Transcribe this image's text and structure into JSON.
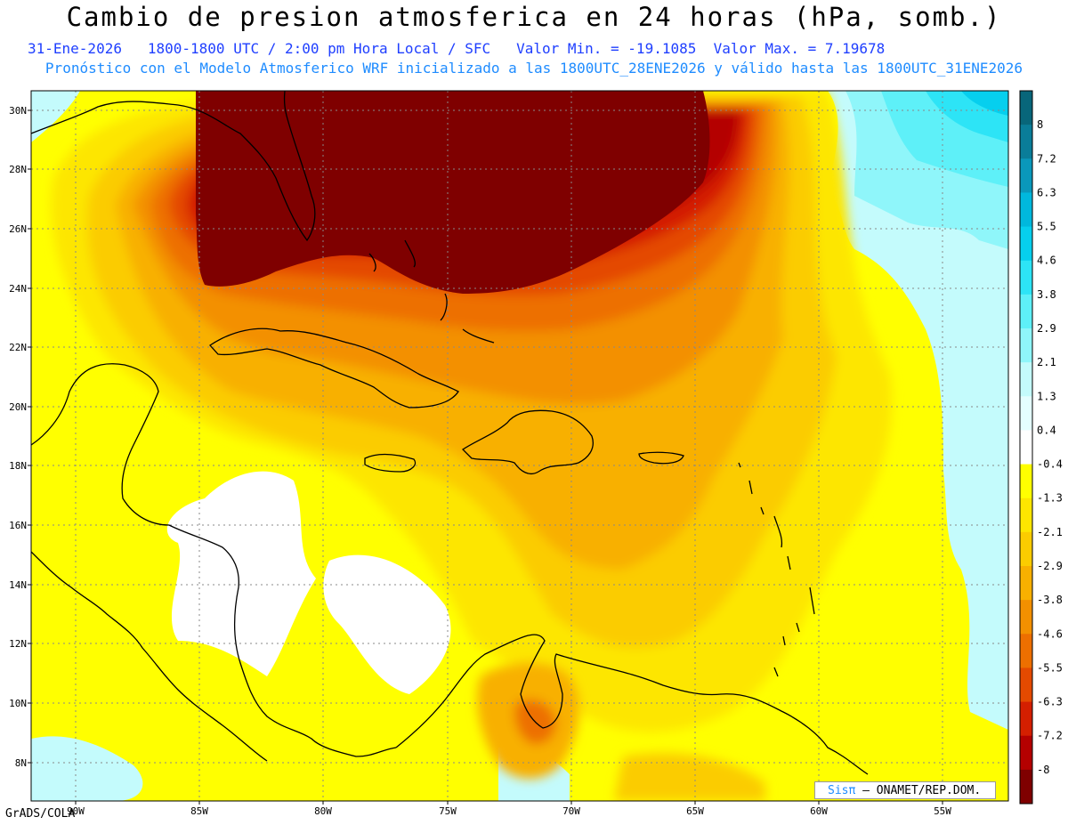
{
  "title": "Cambio de presion atmosferica en 24 horas (hPa, somb.)",
  "subtitle": "31-Ene-2026   1800-1800 UTC / 2:00 pm Hora Local / SFC   Valor Min. = -19.1085  Valor Max. = 7.19678",
  "info": "Pronóstico con el Modelo Atmosferico WRF inicializado a las 1800UTC_28ENE2026 y válido hasta las  1800UTC_31ENE2026",
  "latitude_labels": [
    "30N",
    "28N",
    "26N",
    "24N",
    "22N",
    "20N",
    "18N",
    "16N",
    "14N",
    "12N",
    "10N",
    "8N"
  ],
  "longitude_labels": [
    "90W",
    "85W",
    "80W",
    "75W",
    "70W",
    "65W",
    "60W",
    "55W"
  ],
  "colorbar": {
    "labels": [
      "8",
      "7.2",
      "6.3",
      "5.5",
      "4.6",
      "3.8",
      "2.9",
      "2.1",
      "1.3",
      "0.4",
      "-0.4",
      "-1.3",
      "-2.1",
      "-2.9",
      "-3.8",
      "-4.6",
      "-5.5",
      "-6.3",
      "-7.2",
      "-8"
    ],
    "colors": [
      "#08667a",
      "#0a7d99",
      "#0a98bb",
      "#00b8dd",
      "#06cfee",
      "#2de4f6",
      "#5ef0f8",
      "#8ff6fa",
      "#c4fbfc",
      "#e4feff",
      "#ffffff",
      "#ffff00",
      "#fde600",
      "#fbcc00",
      "#f8b000",
      "#f39000",
      "#ed6f00",
      "#e44a00",
      "#d41f00",
      "#b40000",
      "#7f0000"
    ]
  },
  "credit": "GrADS/COLA",
  "logo": {
    "brand": "Sisπ",
    "text": " – ONAMET/REP.DOM."
  }
}
